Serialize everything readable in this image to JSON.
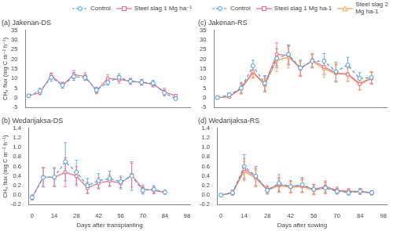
{
  "chart_data": [
    {
      "type": "line",
      "title": "(a) Jakenan-DS",
      "x": [
        0,
        7,
        14,
        21,
        28,
        35,
        42,
        49,
        56,
        63,
        70,
        77,
        84,
        91
      ],
      "xlim": [
        -2,
        100
      ],
      "xticks": [
        0,
        14,
        28,
        42,
        56,
        70,
        84,
        98
      ],
      "ylim": [
        -5,
        35
      ],
      "yticks": [
        -5,
        0,
        5,
        10,
        15,
        20,
        25,
        30,
        35
      ],
      "ylabel": "CH₄ flux (mg C m⁻² h⁻¹)",
      "grid": false,
      "tick_labels": "y",
      "legend": "upper right",
      "series": [
        {
          "name": "Control",
          "color": "#36a2eb",
          "marker": "circle",
          "line_style": "dashed",
          "values": [
            1.0,
            3.5,
            10.5,
            6.5,
            11.0,
            10.5,
            4.0,
            8.0,
            10.5,
            8.5,
            8.0,
            7.5,
            2.5,
            -0.5
          ],
          "errors": [
            0.5,
            1.5,
            2.0,
            1.5,
            2.0,
            1.5,
            1.5,
            1.5,
            2.0,
            1.5,
            1.5,
            1.5,
            1.5,
            0.5
          ]
        },
        {
          "name": "Steel slag 1 Mg ha⁻¹",
          "color": "#ff6384",
          "marker": "square",
          "line_style": "solid",
          "values": [
            1.0,
            2.5,
            11.5,
            6.5,
            12.0,
            11.0,
            3.5,
            10.0,
            9.5,
            8.5,
            8.0,
            7.0,
            3.0,
            1.0
          ],
          "errors": [
            0.5,
            1.0,
            1.5,
            1.5,
            2.0,
            2.0,
            1.5,
            2.0,
            2.0,
            1.5,
            1.5,
            1.5,
            2.0,
            0.5
          ]
        }
      ]
    },
    {
      "type": "line",
      "title": "(b) Wedarijaksa-DS",
      "x": [
        0,
        7,
        14,
        21,
        28,
        35,
        42,
        49,
        56,
        63,
        70,
        77,
        84
      ],
      "xlim": [
        -2,
        100
      ],
      "xticks": [
        0,
        14,
        28,
        42,
        56,
        70,
        84,
        98
      ],
      "ylim": [
        -0.2,
        1.4
      ],
      "yticks": [
        -0.2,
        {
          "value": 0.0,
          "label": "0.0"
        },
        0.2,
        0.4,
        0.6,
        0.8,
        {
          "value": 1.0,
          "label": "1.0"
        },
        1.2,
        1.4
      ],
      "ylabel": "CH₄ flux (mg C m⁻² h⁻¹)",
      "xlabel": "Days after transplanting",
      "grid": false,
      "series": [
        {
          "color": "#36a2eb",
          "marker": "circle",
          "line_style": "dashed",
          "values": [
            -0.05,
            0.37,
            0.38,
            0.7,
            0.48,
            0.2,
            0.3,
            0.35,
            0.28,
            0.4,
            0.1,
            0.12,
            0.06
          ],
          "errors": [
            0.05,
            0.2,
            0.2,
            0.4,
            0.25,
            0.15,
            0.15,
            0.15,
            0.12,
            0.3,
            0.08,
            0.08,
            0.04
          ]
        },
        {
          "color": "#ff6384",
          "marker": "square",
          "line_style": "solid",
          "values": [
            -0.05,
            0.38,
            0.37,
            0.48,
            0.4,
            0.15,
            0.25,
            0.3,
            0.25,
            0.42,
            0.13,
            0.1,
            0.06
          ],
          "errors": [
            0.05,
            0.2,
            0.18,
            0.3,
            0.2,
            0.12,
            0.12,
            0.12,
            0.12,
            0.25,
            0.08,
            0.07,
            0.04
          ]
        }
      ]
    },
    {
      "type": "line",
      "title": "(c) Jakenan-RS",
      "x": [
        0,
        7,
        14,
        21,
        28,
        35,
        42,
        49,
        56,
        63,
        70,
        77,
        84,
        91
      ],
      "xlim": [
        -2,
        100
      ],
      "xticks": [
        0,
        14,
        28,
        42,
        56,
        70,
        84,
        98
      ],
      "ylim": [
        -5,
        35
      ],
      "yticks": [
        -5,
        0,
        5,
        10,
        15,
        20,
        25,
        30,
        35
      ],
      "grid": false,
      "tick_labels": "y",
      "legend": "upper right",
      "series": [
        {
          "name": "Control",
          "color": "#36a2eb",
          "marker": "circle",
          "line_style": "dashed",
          "values": [
            0.0,
            1.5,
            5.0,
            16.5,
            7.5,
            20.5,
            22.5,
            15.5,
            19.0,
            19.0,
            13.5,
            17.0,
            10.0,
            10.5
          ],
          "errors": [
            0.5,
            1.0,
            3.0,
            3.0,
            4.0,
            5.0,
            5.0,
            4.0,
            3.5,
            4.0,
            5.0,
            4.0,
            3.0,
            3.0
          ]
        },
        {
          "name": "Steel slag 1 Mg ha-1",
          "color": "#ff6384",
          "marker": "square",
          "line_style": "solid",
          "values": [
            0.0,
            0.5,
            5.0,
            13.5,
            7.0,
            22.5,
            22.0,
            15.0,
            19.5,
            16.0,
            13.0,
            12.0,
            7.0,
            10.0
          ],
          "errors": [
            0.5,
            0.5,
            2.5,
            3.0,
            4.0,
            6.0,
            5.0,
            4.0,
            3.5,
            4.0,
            4.5,
            3.5,
            3.0,
            3.0
          ]
        },
        {
          "name": "Steel slag 2\nMg ha-1",
          "color": "#ff9f40",
          "marker": "triangle",
          "line_style": "solid",
          "values": [
            0.0,
            0.5,
            4.5,
            13.0,
            6.5,
            19.5,
            21.0,
            15.5,
            19.0,
            15.0,
            12.5,
            12.5,
            7.5,
            10.5
          ],
          "errors": [
            0.5,
            0.5,
            2.5,
            3.0,
            3.5,
            6.0,
            5.5,
            4.0,
            3.5,
            4.5,
            4.5,
            4.0,
            3.5,
            3.0
          ]
        }
      ]
    },
    {
      "type": "line",
      "title": "(d) Wedarijaksa-RS",
      "x": [
        0,
        7,
        14,
        21,
        28,
        35,
        42,
        49,
        56,
        63,
        70,
        77,
        84,
        91
      ],
      "xlim": [
        -2,
        100
      ],
      "xticks": [
        0,
        14,
        28,
        42,
        56,
        70,
        84,
        98
      ],
      "ylim": [
        -0.2,
        1.4
      ],
      "yticks": [
        -0.2,
        {
          "value": 0.0,
          "label": "0.0"
        },
        0.2,
        0.4,
        0.6,
        0.8,
        {
          "value": 1.0,
          "label": "1.0"
        },
        1.2,
        1.4
      ],
      "xlabel": "Days after sowing",
      "grid": false,
      "series": [
        {
          "color": "#36a2eb",
          "marker": "circle",
          "line_style": "dashed",
          "values": [
            0.0,
            0.05,
            0.6,
            0.4,
            0.1,
            0.25,
            0.18,
            0.22,
            0.12,
            0.15,
            0.08,
            0.05,
            0.08,
            0.05
          ],
          "errors": [
            0.02,
            0.05,
            0.25,
            0.2,
            0.08,
            0.18,
            0.12,
            0.15,
            0.1,
            0.12,
            0.06,
            0.05,
            0.06,
            0.04
          ]
        },
        {
          "color": "#ff6384",
          "marker": "square",
          "line_style": "solid",
          "values": [
            0.0,
            0.05,
            0.55,
            0.38,
            0.12,
            0.22,
            0.18,
            0.2,
            0.12,
            0.18,
            0.1,
            0.08,
            0.08,
            0.05
          ],
          "errors": [
            0.02,
            0.05,
            0.22,
            0.18,
            0.08,
            0.15,
            0.12,
            0.14,
            0.1,
            0.12,
            0.07,
            0.06,
            0.06,
            0.04
          ]
        },
        {
          "color": "#ff9f40",
          "marker": "triangle",
          "line_style": "solid",
          "values": [
            0.0,
            0.05,
            0.5,
            0.35,
            0.1,
            0.2,
            0.16,
            0.18,
            0.1,
            0.15,
            0.09,
            0.07,
            0.07,
            0.04
          ],
          "errors": [
            0.02,
            0.04,
            0.2,
            0.18,
            0.07,
            0.14,
            0.12,
            0.13,
            0.09,
            0.12,
            0.06,
            0.05,
            0.05,
            0.04
          ]
        }
      ]
    }
  ]
}
